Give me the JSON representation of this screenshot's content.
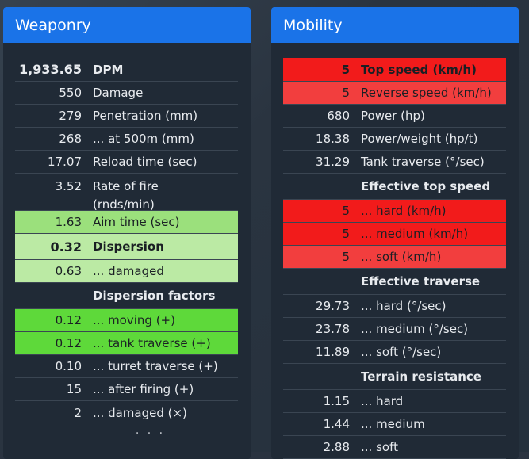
{
  "weaponry": {
    "title": "Weaponry",
    "rows": [
      {
        "value": "1,933.65",
        "label": "DPM"
      },
      {
        "value": "550",
        "label": "Damage"
      },
      {
        "value": "279",
        "label": "Penetration (mm)"
      },
      {
        "value": "268",
        "label": "... at 500m (mm)"
      },
      {
        "value": "17.07",
        "label": "Reload time (sec)"
      },
      {
        "value": "3.52",
        "label": "Rate of fire",
        "label2": "(rnds/min)"
      },
      {
        "value": "1.63",
        "label": "Aim time (sec)"
      },
      {
        "value": "0.32",
        "label": "Dispersion"
      },
      {
        "value": "0.63",
        "label": "... damaged"
      }
    ],
    "factors_header": "Dispersion factors",
    "factors": [
      {
        "value": "0.12",
        "label": "... moving (+)"
      },
      {
        "value": "0.12",
        "label": "... tank traverse (+)"
      },
      {
        "value": "0.10",
        "label": "... turret traverse (+)"
      },
      {
        "value": "15",
        "label": "... after firing (+)"
      },
      {
        "value": "2",
        "label": "... damaged (×)"
      }
    ],
    "more": ". . ."
  },
  "mobility": {
    "title": "Mobility",
    "rows": [
      {
        "value": "5",
        "label": "Top speed (km/h)"
      },
      {
        "value": "5",
        "label": "Reverse speed (km/h)"
      },
      {
        "value": "680",
        "label": "Power (hp)"
      },
      {
        "value": "18.38",
        "label": "Power/weight (hp/t)"
      },
      {
        "value": "31.29",
        "label": "Tank traverse (°/sec)"
      }
    ],
    "eff_speed_header": "Effective top speed",
    "eff_speed": [
      {
        "value": "5",
        "label": "... hard (km/h)"
      },
      {
        "value": "5",
        "label": "... medium (km/h)"
      },
      {
        "value": "5",
        "label": "... soft (km/h)"
      }
    ],
    "eff_trav_header": "Effective traverse",
    "eff_trav": [
      {
        "value": "29.73",
        "label": "... hard (°/sec)"
      },
      {
        "value": "23.78",
        "label": "... medium (°/sec)"
      },
      {
        "value": "11.89",
        "label": "... soft (°/sec)"
      }
    ],
    "terrain_header": "Terrain resistance",
    "terrain": [
      {
        "value": "1.15",
        "label": "... hard"
      },
      {
        "value": "1.44",
        "label": "... medium"
      },
      {
        "value": "2.88",
        "label": "... soft"
      }
    ]
  },
  "colors": {
    "header_blue": "#1a73e8",
    "good_green": "#5ed93a",
    "bad_red": "#f21b1b"
  }
}
